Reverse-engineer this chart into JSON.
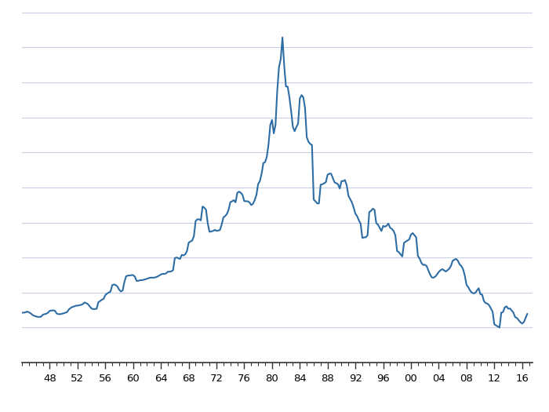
{
  "line_color": "#2e6da4",
  "line_width": 1.5,
  "background_color": "#ffffff",
  "grid_color": "#c8cfe0",
  "xtick_labels": [
    "48",
    "52",
    "56",
    "60",
    "64",
    "68",
    "72",
    "76",
    "80",
    "84",
    "88",
    "92",
    "96",
    "00",
    "04",
    "08",
    "12",
    "16"
  ],
  "xtick_years": [
    1948,
    1952,
    1956,
    1960,
    1964,
    1968,
    1972,
    1976,
    1980,
    1984,
    1988,
    1992,
    1996,
    2000,
    2004,
    2008,
    2012,
    2016
  ],
  "xlim": [
    1944.0,
    2017.5
  ],
  "ylim": [
    0,
    16.5
  ],
  "years": [
    1944.0,
    1944.25,
    1944.5,
    1944.75,
    1945.0,
    1945.25,
    1945.5,
    1945.75,
    1946.0,
    1946.25,
    1946.5,
    1946.75,
    1947.0,
    1947.25,
    1947.5,
    1947.75,
    1948.0,
    1948.25,
    1948.5,
    1948.75,
    1949.0,
    1949.25,
    1949.5,
    1949.75,
    1950.0,
    1950.25,
    1950.5,
    1950.75,
    1951.0,
    1951.25,
    1951.5,
    1951.75,
    1952.0,
    1952.25,
    1952.5,
    1952.75,
    1953.0,
    1953.25,
    1953.5,
    1953.75,
    1954.0,
    1954.25,
    1954.5,
    1954.75,
    1955.0,
    1955.25,
    1955.5,
    1955.75,
    1956.0,
    1956.25,
    1956.5,
    1956.75,
    1957.0,
    1957.25,
    1957.5,
    1957.75,
    1958.0,
    1958.25,
    1958.5,
    1958.75,
    1959.0,
    1959.25,
    1959.5,
    1959.75,
    1960.0,
    1960.25,
    1960.5,
    1960.75,
    1961.0,
    1961.25,
    1961.5,
    1961.75,
    1962.0,
    1962.25,
    1962.5,
    1962.75,
    1963.0,
    1963.25,
    1963.5,
    1963.75,
    1964.0,
    1964.25,
    1964.5,
    1964.75,
    1965.0,
    1965.25,
    1965.5,
    1965.75,
    1966.0,
    1966.25,
    1966.5,
    1966.75,
    1967.0,
    1967.25,
    1967.5,
    1967.75,
    1968.0,
    1968.25,
    1968.5,
    1968.75,
    1969.0,
    1969.25,
    1969.5,
    1969.75,
    1970.0,
    1970.25,
    1970.5,
    1970.75,
    1971.0,
    1971.25,
    1971.5,
    1971.75,
    1972.0,
    1972.25,
    1972.5,
    1972.75,
    1973.0,
    1973.25,
    1973.5,
    1973.75,
    1974.0,
    1974.25,
    1974.5,
    1974.75,
    1975.0,
    1975.25,
    1975.5,
    1975.75,
    1976.0,
    1976.25,
    1976.5,
    1976.75,
    1977.0,
    1977.25,
    1977.5,
    1977.75,
    1978.0,
    1978.25,
    1978.5,
    1978.75,
    1979.0,
    1979.25,
    1979.5,
    1979.75,
    1980.0,
    1980.25,
    1980.5,
    1980.75,
    1981.0,
    1981.25,
    1981.5,
    1981.75,
    1982.0,
    1982.25,
    1982.5,
    1982.75,
    1983.0,
    1983.25,
    1983.5,
    1983.75,
    1984.0,
    1984.25,
    1984.5,
    1984.75,
    1985.0,
    1985.25,
    1985.5,
    1985.75,
    1986.0,
    1986.25,
    1986.5,
    1986.75,
    1987.0,
    1987.25,
    1987.5,
    1987.75,
    1988.0,
    1988.25,
    1988.5,
    1988.75,
    1989.0,
    1989.25,
    1989.5,
    1989.75,
    1990.0,
    1990.25,
    1990.5,
    1990.75,
    1991.0,
    1991.25,
    1991.5,
    1991.75,
    1992.0,
    1992.25,
    1992.5,
    1992.75,
    1993.0,
    1993.25,
    1993.5,
    1993.75,
    1994.0,
    1994.25,
    1994.5,
    1994.75,
    1995.0,
    1995.25,
    1995.5,
    1995.75,
    1996.0,
    1996.25,
    1996.5,
    1996.75,
    1997.0,
    1997.25,
    1997.5,
    1997.75,
    1998.0,
    1998.25,
    1998.5,
    1998.75,
    1999.0,
    1999.25,
    1999.5,
    1999.75,
    2000.0,
    2000.25,
    2000.5,
    2000.75,
    2001.0,
    2001.25,
    2001.5,
    2001.75,
    2002.0,
    2002.25,
    2002.5,
    2002.75,
    2003.0,
    2003.25,
    2003.5,
    2003.75,
    2004.0,
    2004.25,
    2004.5,
    2004.75,
    2005.0,
    2005.25,
    2005.5,
    2005.75,
    2006.0,
    2006.25,
    2006.5,
    2006.75,
    2007.0,
    2007.25,
    2007.5,
    2007.75,
    2008.0,
    2008.25,
    2008.5,
    2008.75,
    2009.0,
    2009.25,
    2009.5,
    2009.75,
    2010.0,
    2010.25,
    2010.5,
    2010.75,
    2011.0,
    2011.25,
    2011.5,
    2011.75,
    2012.0,
    2012.25,
    2012.5,
    2012.75,
    2013.0,
    2013.25,
    2013.5,
    2013.75,
    2014.0,
    2014.25,
    2014.5,
    2014.75,
    2015.0,
    2015.25,
    2015.5,
    2015.75,
    2016.0,
    2016.25,
    2016.5,
    2016.75
  ],
  "values": [
    2.35,
    2.35,
    2.37,
    2.4,
    2.37,
    2.32,
    2.25,
    2.2,
    2.18,
    2.15,
    2.15,
    2.16,
    2.25,
    2.28,
    2.3,
    2.35,
    2.44,
    2.45,
    2.46,
    2.44,
    2.31,
    2.28,
    2.28,
    2.3,
    2.32,
    2.35,
    2.38,
    2.5,
    2.57,
    2.62,
    2.64,
    2.68,
    2.68,
    2.7,
    2.72,
    2.75,
    2.83,
    2.8,
    2.75,
    2.65,
    2.55,
    2.52,
    2.52,
    2.54,
    2.84,
    2.9,
    2.96,
    3.0,
    3.18,
    3.25,
    3.3,
    3.35,
    3.65,
    3.68,
    3.65,
    3.58,
    3.43,
    3.35,
    3.4,
    3.8,
    4.07,
    4.1,
    4.1,
    4.12,
    4.12,
    4.05,
    3.85,
    3.85,
    3.88,
    3.88,
    3.9,
    3.92,
    3.95,
    3.98,
    4.0,
    4.0,
    4.0,
    4.02,
    4.05,
    4.1,
    4.15,
    4.18,
    4.18,
    4.2,
    4.28,
    4.28,
    4.3,
    4.35,
    4.92,
    4.95,
    4.92,
    4.88,
    5.07,
    5.05,
    5.1,
    5.25,
    5.65,
    5.7,
    5.75,
    5.95,
    6.67,
    6.75,
    6.75,
    6.7,
    7.35,
    7.3,
    7.2,
    6.55,
    6.16,
    6.18,
    6.2,
    6.25,
    6.21,
    6.22,
    6.25,
    6.5,
    6.84,
    6.9,
    7.0,
    7.2,
    7.56,
    7.6,
    7.65,
    7.55,
    8.0,
    8.05,
    8.0,
    7.9,
    7.61,
    7.6,
    7.6,
    7.55,
    7.42,
    7.48,
    7.65,
    7.9,
    8.41,
    8.55,
    8.9,
    9.4,
    9.44,
    9.7,
    10.3,
    11.2,
    11.43,
    10.8,
    11.2,
    12.8,
    13.92,
    14.3,
    15.32,
    14.0,
    13.01,
    13.0,
    12.5,
    11.85,
    11.1,
    10.9,
    11.1,
    11.25,
    12.44,
    12.6,
    12.5,
    12.0,
    10.62,
    10.4,
    10.3,
    10.25,
    7.68,
    7.6,
    7.5,
    7.5,
    8.38,
    8.4,
    8.45,
    8.5,
    8.85,
    8.9,
    8.9,
    8.7,
    8.49,
    8.45,
    8.4,
    8.2,
    8.55,
    8.55,
    8.6,
    8.35,
    7.86,
    7.7,
    7.55,
    7.3,
    7.01,
    6.9,
    6.7,
    6.55,
    5.87,
    5.9,
    5.9,
    6.0,
    7.09,
    7.15,
    7.25,
    7.2,
    6.57,
    6.5,
    6.35,
    6.2,
    6.44,
    6.4,
    6.45,
    6.55,
    6.35,
    6.3,
    6.2,
    6.0,
    5.26,
    5.2,
    5.1,
    5.0,
    5.64,
    5.7,
    5.75,
    5.8,
    6.03,
    6.1,
    6.0,
    5.9,
    5.02,
    4.9,
    4.7,
    4.6,
    4.61,
    4.55,
    4.35,
    4.15,
    4.01,
    4.0,
    4.05,
    4.15,
    4.27,
    4.35,
    4.4,
    4.35,
    4.29,
    4.35,
    4.42,
    4.55,
    4.79,
    4.85,
    4.88,
    4.8,
    4.63,
    4.55,
    4.4,
    4.1,
    3.66,
    3.55,
    3.4,
    3.3,
    3.26,
    3.28,
    3.4,
    3.5,
    3.22,
    3.2,
    2.9,
    2.8,
    2.78,
    2.7,
    2.55,
    2.4,
    1.8,
    1.75,
    1.7,
    1.65,
    2.35,
    2.38,
    2.6,
    2.65,
    2.54,
    2.55,
    2.45,
    2.35,
    2.14,
    2.1,
    2.0,
    1.9,
    1.84,
    1.9,
    2.1,
    2.3
  ]
}
